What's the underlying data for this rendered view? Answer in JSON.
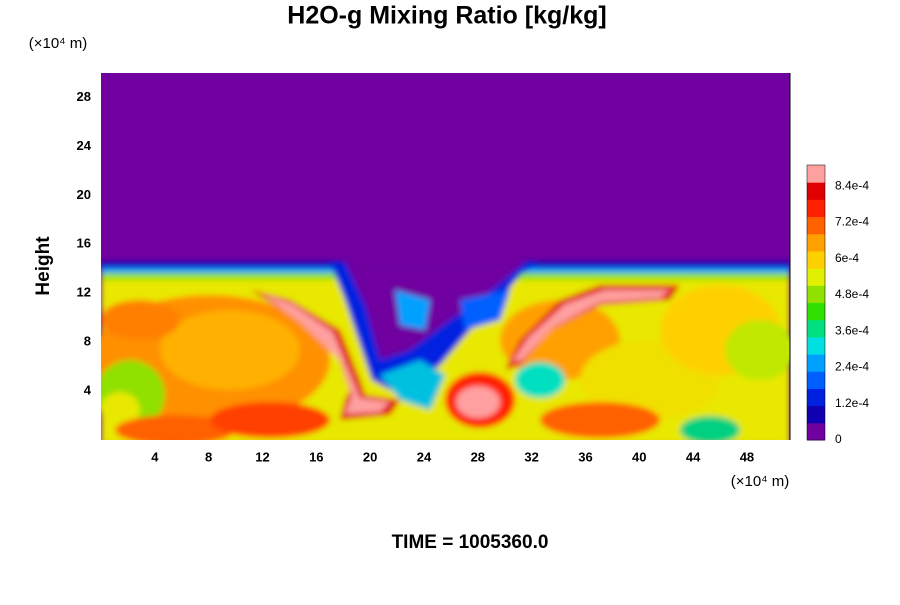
{
  "chart_data": {
    "type": "contour",
    "title": "H2O-g Mixing Ratio [kg/kg]",
    "ylabel": "Height",
    "y_unit_label": "(×10⁴ m)",
    "x_unit_label": "(×10⁴ m)",
    "time_label": "TIME = 1005360.0",
    "xlim": [
      0,
      51.2
    ],
    "ylim": [
      0,
      30
    ],
    "xticks": [
      4,
      8,
      12,
      16,
      20,
      24,
      28,
      32,
      36,
      40,
      44,
      48
    ],
    "yticks": [
      4,
      8,
      12,
      16,
      20,
      24,
      28
    ],
    "colorbar": {
      "range": [
        0,
        0.00091
      ],
      "ticks": [
        0,
        {
          "value": 0.00012,
          "label": "1.2e-4"
        },
        {
          "value": 0.00024,
          "label": "2.4e-4"
        },
        {
          "value": 0.00036,
          "label": "3.6e-4"
        },
        {
          "value": 0.00048,
          "label": "4.8e-4"
        },
        {
          "value": 0.0006,
          "label": "6e-4"
        },
        {
          "value": 0.00072,
          "label": "7.2e-4"
        },
        {
          "value": 0.00084,
          "label": "8.4e-4"
        }
      ],
      "colors": [
        "#7000a0",
        "#1000b0",
        "#0020e0",
        "#0060ff",
        "#00a0ff",
        "#00e0e0",
        "#00e080",
        "#30e000",
        "#90e000",
        "#e0f000",
        "#ffd000",
        "#ffa000",
        "#ff6000",
        "#ff2000",
        "#e00000",
        "#ffa0a0"
      ]
    }
  }
}
